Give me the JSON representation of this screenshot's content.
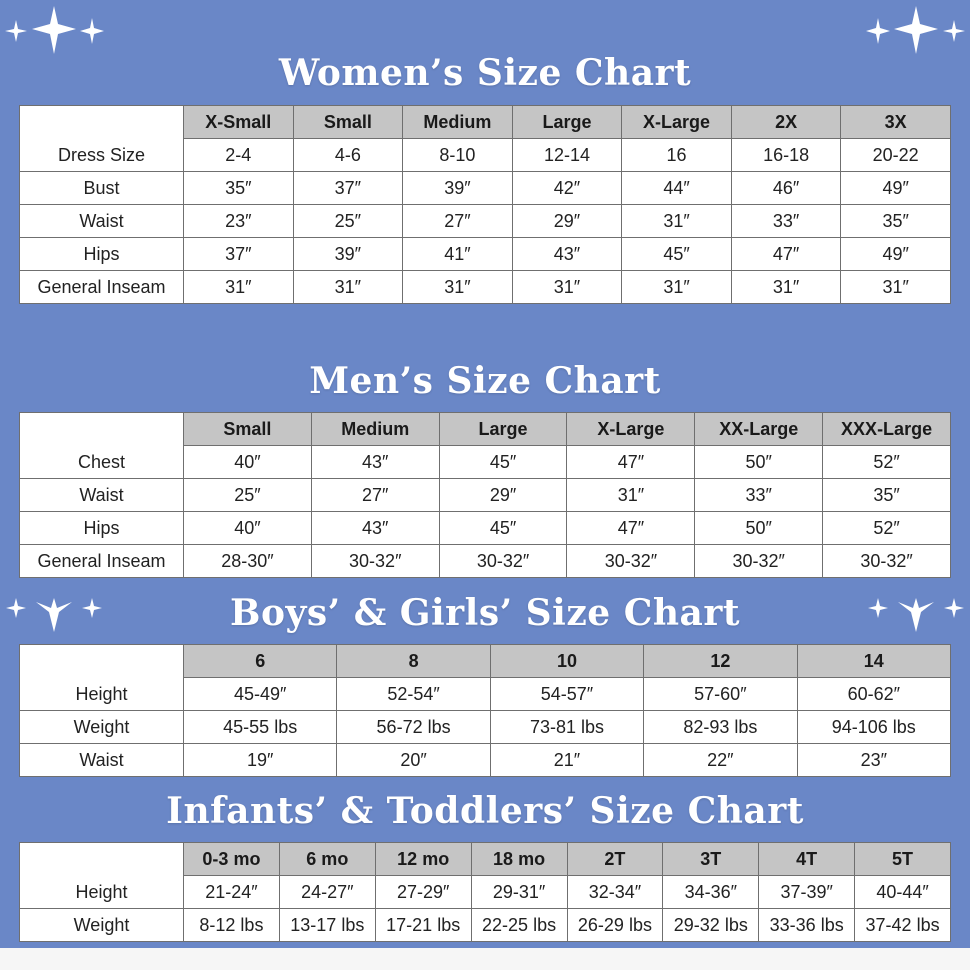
{
  "women": {
    "title": "Women’s Size Chart",
    "sizes": [
      "X-Small",
      "Small",
      "Medium",
      "Large",
      "X-Large",
      "2X",
      "3X"
    ],
    "rows": [
      {
        "label": "Dress Size",
        "values": [
          "2-4",
          "4-6",
          "8-10",
          "12-14",
          "16",
          "16-18",
          "20-22"
        ]
      },
      {
        "label": "Bust",
        "values": [
          "35″",
          "37″",
          "39″",
          "42″",
          "44″",
          "46″",
          "49″"
        ]
      },
      {
        "label": "Waist",
        "values": [
          "23″",
          "25″",
          "27″",
          "29″",
          "31″",
          "33″",
          "35″"
        ]
      },
      {
        "label": "Hips",
        "values": [
          "37″",
          "39″",
          "41″",
          "43″",
          "45″",
          "47″",
          "49″"
        ]
      },
      {
        "label": "General Inseam",
        "values": [
          "31″",
          "31″",
          "31″",
          "31″",
          "31″",
          "31″",
          "31″"
        ]
      }
    ]
  },
  "men": {
    "title": "Men’s Size Chart",
    "sizes": [
      "Small",
      "Medium",
      "Large",
      "X-Large",
      "XX-Large",
      "XXX-Large"
    ],
    "rows": [
      {
        "label": "Chest",
        "values": [
          "40″",
          "43″",
          "45″",
          "47″",
          "50″",
          "52″"
        ]
      },
      {
        "label": "Waist",
        "values": [
          "25″",
          "27″",
          "29″",
          "31″",
          "33″",
          "35″"
        ]
      },
      {
        "label": "Hips",
        "values": [
          "40″",
          "43″",
          "45″",
          "47″",
          "50″",
          "52″"
        ]
      },
      {
        "label": "General Inseam",
        "values": [
          "28-30″",
          "30-32″",
          "30-32″",
          "30-32″",
          "30-32″",
          "30-32″"
        ]
      }
    ]
  },
  "kids": {
    "title": "Boys’ & Girls’ Size Chart",
    "sizes": [
      "6",
      "8",
      "10",
      "12",
      "14"
    ],
    "rows": [
      {
        "label": "Height",
        "values": [
          "45-49″",
          "52-54″",
          "54-57″",
          "57-60″",
          "60-62″"
        ]
      },
      {
        "label": "Weight",
        "values": [
          "45-55 lbs",
          "56-72 lbs",
          "73-81 lbs",
          "82-93 lbs",
          "94-106 lbs"
        ]
      },
      {
        "label": "Waist",
        "values": [
          "19″",
          "20″",
          "21″",
          "22″",
          "23″"
        ]
      }
    ]
  },
  "infants": {
    "title": "Infants’ & Toddlers’ Size Chart",
    "sizes": [
      "0-3 mo",
      "6 mo",
      "12 mo",
      "18 mo",
      "2T",
      "3T",
      "4T",
      "5T"
    ],
    "rows": [
      {
        "label": "Height",
        "values": [
          "21-24″",
          "24-27″",
          "27-29″",
          "29-31″",
          "32-34″",
          "34-36″",
          "37-39″",
          "40-44″"
        ]
      },
      {
        "label": "Weight",
        "values": [
          "8-12 lbs",
          "13-17 lbs",
          "17-21 lbs",
          "22-25 lbs",
          "26-29 lbs",
          "29-32 lbs",
          "33-36 lbs",
          "37-42 lbs"
        ]
      }
    ]
  },
  "colors": {
    "background": "#6a87c7",
    "header_row": "#c5c5c5",
    "sparkle": "#ffffff"
  },
  "decorations": {
    "sparkle_icon": "four-point-star-icon"
  }
}
